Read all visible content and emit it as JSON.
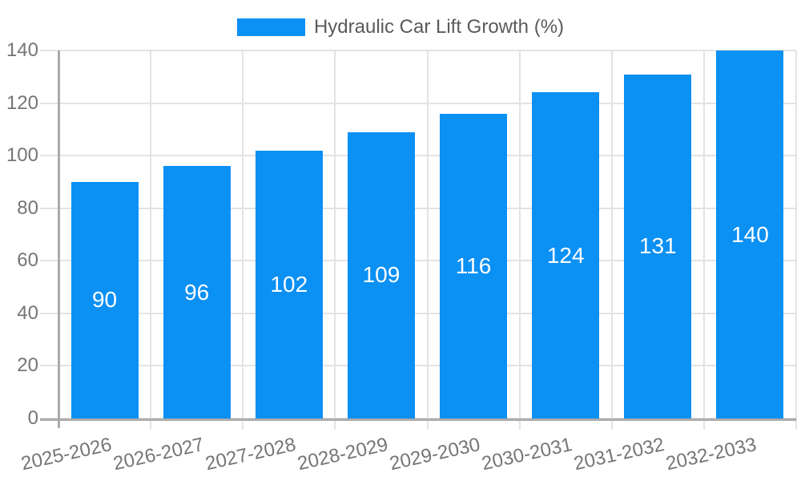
{
  "chart_data": {
    "type": "bar",
    "title": "Hydraulic Car Lift Growth (%)",
    "categories": [
      "2025-2026",
      "2026-2027",
      "2027-2028",
      "2028-2029",
      "2029-2030",
      "2030-2031",
      "2031-2032",
      "2032-2033"
    ],
    "values": [
      90,
      96,
      102,
      109,
      116,
      124,
      131,
      140
    ],
    "value_labels": [
      "90",
      "96",
      "102",
      "109",
      "116",
      "124",
      "131",
      "140"
    ],
    "ytick_labels": [
      "0",
      "20",
      "40",
      "60",
      "80",
      "100",
      "120",
      "140"
    ],
    "yticks": [
      0,
      20,
      40,
      60,
      80,
      100,
      120,
      140
    ],
    "ylim": [
      0,
      140
    ],
    "xlabel": "",
    "ylabel": "",
    "grid": true,
    "legend_position": "top-center",
    "x_label_rotation_deg": -12.5,
    "colors": {
      "bar": "#0b90f4",
      "value_label": "#ffffff",
      "axis_text": "#757575",
      "legend_text": "#5a5a5a",
      "gridline": "#e3e3e3",
      "axis_line": "#ababab"
    }
  }
}
